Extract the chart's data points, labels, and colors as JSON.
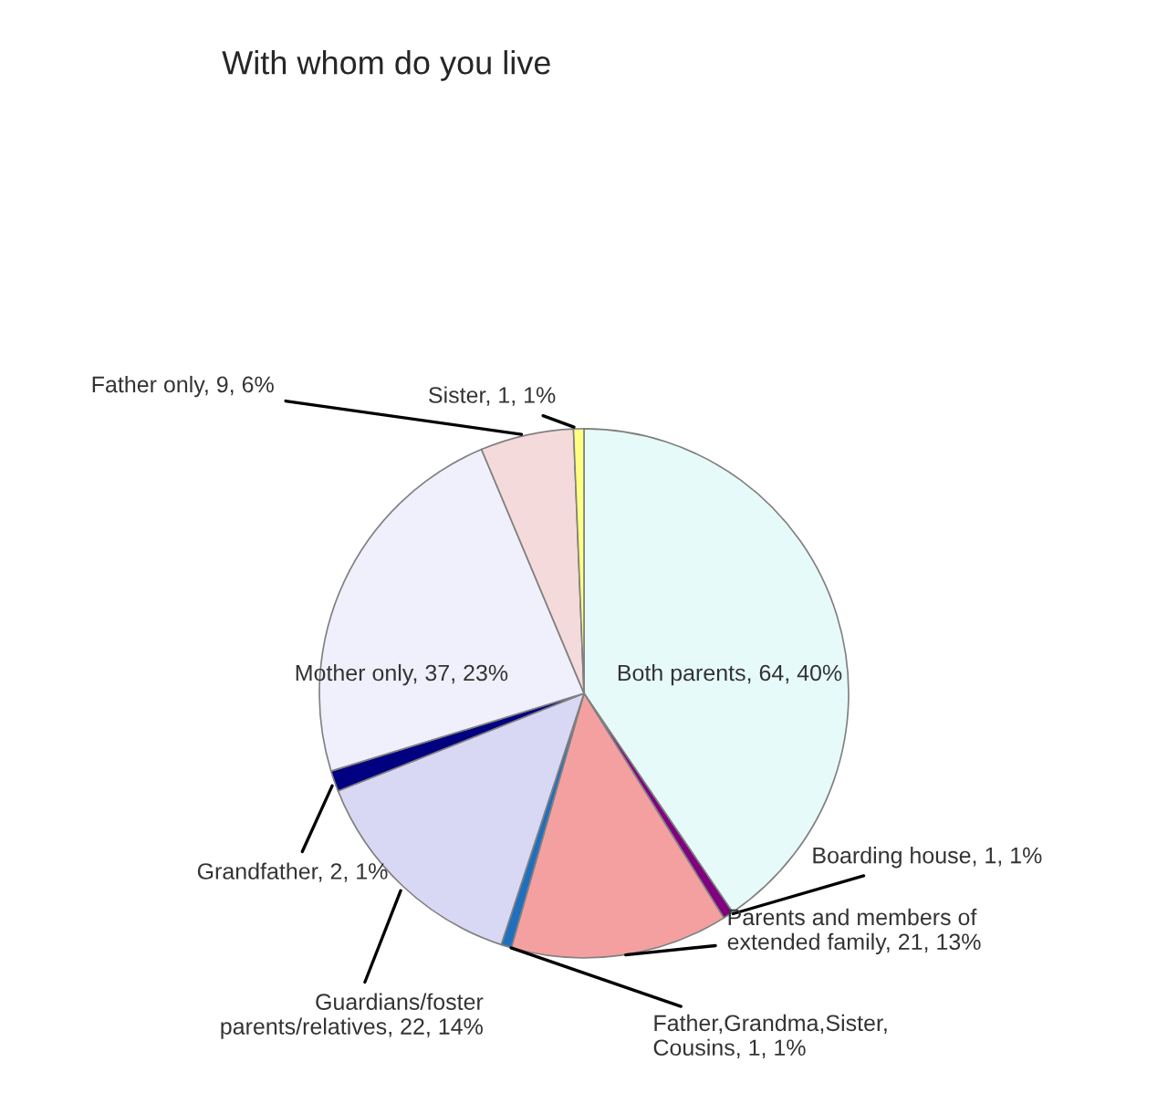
{
  "chart_data": {
    "type": "pie",
    "title": "With whom do you live",
    "categories": [
      "Both parents",
      "Boarding house",
      "Parents and members of extended family",
      "Father,Grandma,Sister, Cousins",
      "Guardians/foster parents/relatives",
      "Grandfather",
      "Mother only",
      "Father only",
      "Sister"
    ],
    "values": [
      64,
      1,
      21,
      1,
      22,
      2,
      37,
      9,
      1
    ],
    "value_labels": [
      "64, 40%",
      "1, 1%",
      "21, 13%",
      "1, 1%",
      "22, 14%",
      "2, 1%",
      "37, 23%",
      "9, 6%",
      "1, 1%"
    ],
    "colors": [
      "#e6fafa",
      "#800080",
      "#f4a0a0",
      "#1f6fbf",
      "#d8d8f4",
      "#000080",
      "#f0f0fc",
      "#f4dada",
      "#ffff80"
    ],
    "legend": false
  }
}
